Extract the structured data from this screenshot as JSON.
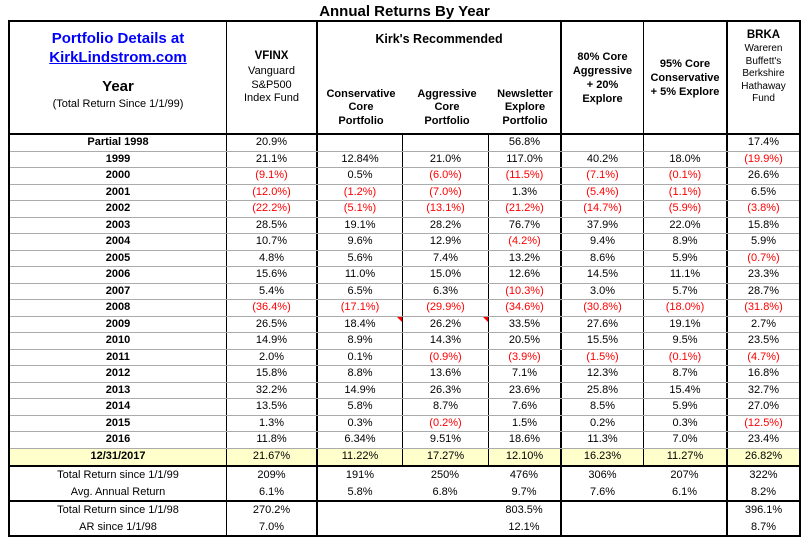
{
  "title": "Annual Returns By Year",
  "colors": {
    "link_blue": "#0000ff",
    "negative_red": "#ff0000",
    "highlight_yellow": "#ffffcc",
    "border_black": "#000000",
    "row_line_gray": "#ababab"
  },
  "header": {
    "portfolio_details_line": "Portfolio Details at",
    "portfolio_link": "KirkLindstrom.com",
    "year_label": "Year",
    "year_subtitle": "(Total Return Since 1/1/99)",
    "columns": {
      "vfinx": {
        "ticker": "VFINX",
        "desc": "Vanguard\nS&P500\nIndex Fund"
      },
      "kirk_group": {
        "title": "Kirk's Recommended",
        "subcolumns": [
          "Conservative\nCore\nPortfolio",
          "Aggressive\nCore\nPortfolio",
          "Newsletter\nExplore\nPortfolio"
        ]
      },
      "core80": "80% Core\nAggressive\n+ 20%\nExplore",
      "core95": "95% Core\nConservative\n+ 5% Explore",
      "brka": {
        "ticker": "BRKA",
        "desc": "Wareren\nBuffett's\nBerkshire\nHathaway\nFund"
      }
    }
  },
  "chart_data": {
    "type": "table",
    "title": "Annual Returns By Year",
    "columns": [
      "Year",
      "VFINX Vanguard S&P500 Index Fund",
      "Conservative Core Portfolio",
      "Aggressive Core Portfolio",
      "Newsletter Explore Portfolio",
      "80% Core Aggressive + 20% Explore",
      "95% Core Conservative + 5% Explore",
      "BRKA Wareren Buffett's Berkshire Hathaway Fund"
    ],
    "negative_notation": "parentheses shown in red",
    "highlight_row": "12/31/2017",
    "rows": [
      {
        "label": "Partial 1998",
        "values": [
          "20.9%",
          "",
          "",
          "56.8%",
          "",
          "",
          "17.4%"
        ]
      },
      {
        "label": "1999",
        "values": [
          "21.1%",
          "12.84%",
          "21.0%",
          "117.0%",
          "40.2%",
          "18.0%",
          "(19.9%)"
        ]
      },
      {
        "label": "2000",
        "values": [
          "(9.1%)",
          "0.5%",
          "(6.0%)",
          "(11.5%)",
          "(7.1%)",
          "(0.1%)",
          "26.6%"
        ]
      },
      {
        "label": "2001",
        "values": [
          "(12.0%)",
          "(1.2%)",
          "(7.0%)",
          "1.3%",
          "(5.4%)",
          "(1.1%)",
          "6.5%"
        ]
      },
      {
        "label": "2002",
        "values": [
          "(22.2%)",
          "(5.1%)",
          "(13.1%)",
          "(21.2%)",
          "(14.7%)",
          "(5.9%)",
          "(3.8%)"
        ]
      },
      {
        "label": "2003",
        "values": [
          "28.5%",
          "19.1%",
          "28.2%",
          "76.7%",
          "37.9%",
          "22.0%",
          "15.8%"
        ]
      },
      {
        "label": "2004",
        "values": [
          "10.7%",
          "9.6%",
          "12.9%",
          "(4.2%)",
          "9.4%",
          "8.9%",
          "5.9%"
        ]
      },
      {
        "label": "2005",
        "values": [
          "4.8%",
          "5.6%",
          "7.4%",
          "13.2%",
          "8.6%",
          "5.9%",
          "(0.7%)"
        ]
      },
      {
        "label": "2006",
        "values": [
          "15.6%",
          "11.0%",
          "15.0%",
          "12.6%",
          "14.5%",
          "11.1%",
          "23.3%"
        ]
      },
      {
        "label": "2007",
        "values": [
          "5.4%",
          "6.5%",
          "6.3%",
          "(10.3%)",
          "3.0%",
          "5.7%",
          "28.7%"
        ]
      },
      {
        "label": "2008",
        "values": [
          "(36.4%)",
          "(17.1%)",
          "(29.9%)",
          "(34.6%)",
          "(30.8%)",
          "(18.0%)",
          "(31.8%)"
        ]
      },
      {
        "label": "2009",
        "values": [
          "26.5%",
          "18.4%",
          "26.2%",
          "33.5%",
          "27.6%",
          "19.1%",
          "2.7%"
        ]
      },
      {
        "label": "2010",
        "values": [
          "14.9%",
          "8.9%",
          "14.3%",
          "20.5%",
          "15.5%",
          "9.5%",
          "23.5%"
        ]
      },
      {
        "label": "2011",
        "values": [
          "2.0%",
          "0.1%",
          "(0.9%)",
          "(3.9%)",
          "(1.5%)",
          "(0.1%)",
          "(4.7%)"
        ]
      },
      {
        "label": "2012",
        "values": [
          "15.8%",
          "8.8%",
          "13.6%",
          "7.1%",
          "12.3%",
          "8.7%",
          "16.8%"
        ]
      },
      {
        "label": "2013",
        "values": [
          "32.2%",
          "14.9%",
          "26.3%",
          "23.6%",
          "25.8%",
          "15.4%",
          "32.7%"
        ]
      },
      {
        "label": "2014",
        "values": [
          "13.5%",
          "5.8%",
          "8.7%",
          "7.6%",
          "8.5%",
          "5.9%",
          "27.0%"
        ]
      },
      {
        "label": "2015",
        "values": [
          "1.3%",
          "0.3%",
          "(0.2%)",
          "1.5%",
          "0.2%",
          "0.3%",
          "(12.5%)"
        ]
      },
      {
        "label": "2016",
        "values": [
          "11.8%",
          "6.34%",
          "9.51%",
          "18.6%",
          "11.3%",
          "7.0%",
          "23.4%"
        ]
      },
      {
        "label": "12/31/2017",
        "values": [
          "21.67%",
          "11.22%",
          "17.27%",
          "12.10%",
          "16.23%",
          "11.27%",
          "26.82%"
        ],
        "highlight": true
      }
    ],
    "summary_groups": [
      [
        {
          "label": "Total Return since 1/1/99",
          "values": [
            "209%",
            "191%",
            "250%",
            "476%",
            "306%",
            "207%",
            "322%"
          ]
        },
        {
          "label": "Avg. Annual Return",
          "values": [
            "6.1%",
            "5.8%",
            "6.8%",
            "9.7%",
            "7.6%",
            "6.1%",
            "8.2%"
          ]
        }
      ],
      [
        {
          "label": "Total Return since 1/1/98",
          "values": [
            "270.2%",
            "",
            "",
            "803.5%",
            "",
            "",
            "396.1%"
          ]
        },
        {
          "label": "AR since 1/1/98",
          "values": [
            "7.0%",
            "",
            "",
            "12.1%",
            "",
            "",
            "8.7%"
          ]
        }
      ]
    ],
    "comment_markers": [
      {
        "row": "2009",
        "value_index": 1,
        "column": "Conservative Core Portfolio"
      },
      {
        "row": "2009",
        "value_index": 2,
        "column": "Aggressive Core Portfolio"
      }
    ]
  }
}
